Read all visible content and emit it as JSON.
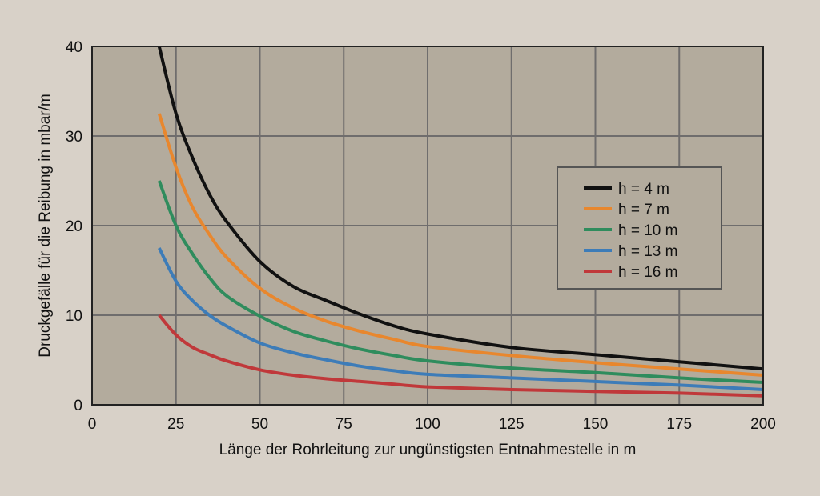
{
  "colors": {
    "page_background": "#d8d1c8",
    "plot_background": "#b3ab9d",
    "grid": "#6f6d6d",
    "legend_background": "#b3ab9d"
  },
  "chart_data": {
    "type": "line",
    "xlabel": "Länge der Rohrleitung zur ungünstigsten Entnahmestelle in m",
    "ylabel": "Druckgefälle für die Reibung in mbar/m",
    "xlim": [
      0,
      200
    ],
    "ylim": [
      0,
      40
    ],
    "xticks": [
      0,
      25,
      50,
      75,
      100,
      125,
      150,
      175,
      200
    ],
    "yticks": [
      0,
      10,
      20,
      30,
      40
    ],
    "grid": true,
    "legend_position": "right",
    "x": [
      20,
      25,
      30,
      35,
      40,
      50,
      60,
      70,
      80,
      90,
      100,
      125,
      150,
      175,
      200
    ],
    "series": [
      {
        "name": "h = 4 m",
        "color": "#111111",
        "values": [
          40,
          32.5,
          27.5,
          23.5,
          20.5,
          16,
          13.2,
          11.6,
          10.1,
          8.8,
          7.9,
          6.4,
          5.6,
          4.8,
          4.0
        ]
      },
      {
        "name": "h = 7 m",
        "color": "#e8872e",
        "values": [
          32.5,
          26.5,
          22,
          19,
          16.5,
          13,
          10.8,
          9.3,
          8.2,
          7.3,
          6.5,
          5.5,
          4.7,
          4.0,
          3.3
        ]
      },
      {
        "name": "h = 10 m",
        "color": "#2f8c5d",
        "values": [
          25,
          20,
          16.8,
          14.2,
          12.2,
          9.9,
          8.2,
          7.1,
          6.2,
          5.5,
          4.9,
          4.1,
          3.6,
          3.0,
          2.5
        ]
      },
      {
        "name": "h = 13 m",
        "color": "#3d7cb8",
        "values": [
          17.5,
          13.8,
          11.6,
          10,
          8.8,
          6.9,
          5.8,
          5.0,
          4.3,
          3.8,
          3.4,
          3.0,
          2.6,
          2.2,
          1.7
        ]
      },
      {
        "name": "h = 16 m",
        "color": "#c0383a",
        "values": [
          10,
          7.8,
          6.4,
          5.6,
          4.9,
          3.9,
          3.3,
          2.9,
          2.6,
          2.3,
          2.0,
          1.7,
          1.5,
          1.3,
          1.0
        ]
      }
    ]
  }
}
